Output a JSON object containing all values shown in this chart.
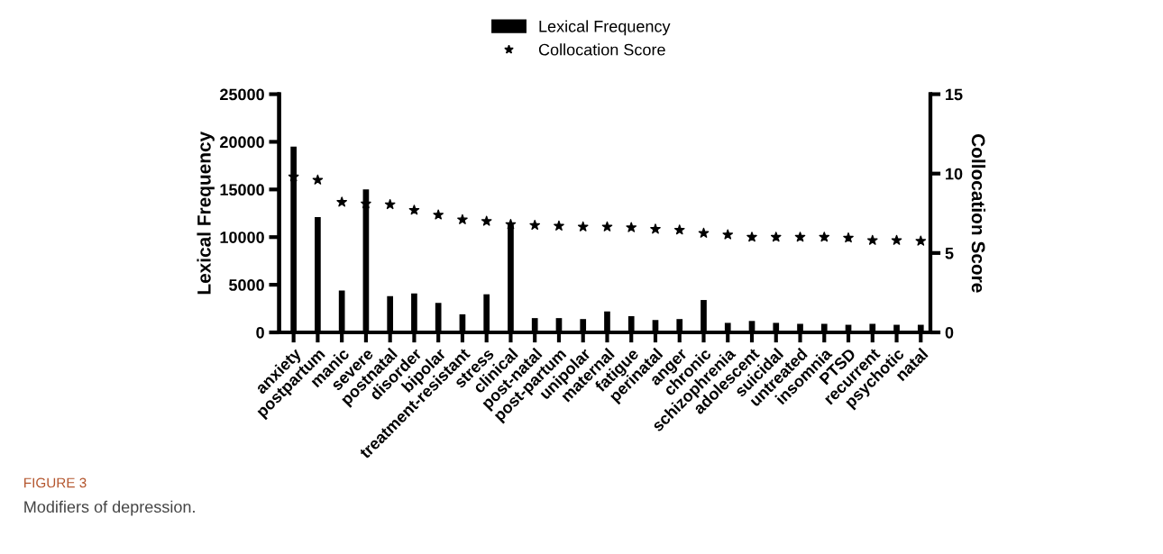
{
  "chart_data": {
    "type": "bar",
    "categories": [
      "anxiety",
      "postpartum",
      "manic",
      "severe",
      "postnatal",
      "disorder",
      "bipolar",
      "treatment-resistant",
      "stress",
      "clinical",
      "post-natal",
      "post-partum",
      "unipolar",
      "maternal",
      "fatigue",
      "perinatal",
      "anger",
      "chronic",
      "schizophrenia",
      "adolescent",
      "suicidal",
      "untreated",
      "insomnia",
      "PTSD",
      "recurrent",
      "psychotic",
      "natal"
    ],
    "series": [
      {
        "name": "Lexical Frequency",
        "color": "#000000",
        "values": [
          19500,
          12100,
          4400,
          15000,
          3800,
          4100,
          3100,
          1900,
          4000,
          11300,
          1500,
          1500,
          1400,
          2200,
          1700,
          1300,
          1400,
          3400,
          1000,
          1200,
          1000,
          900,
          900,
          800,
          900,
          800,
          800
        ]
      },
      {
        "name": "Collocation Score",
        "type": "scatter",
        "axis": "y2",
        "marker": "star",
        "color": "#000000",
        "values": [
          9.8,
          9.6,
          8.2,
          8.1,
          8.05,
          7.7,
          7.4,
          7.1,
          7.0,
          6.8,
          6.75,
          6.7,
          6.65,
          6.65,
          6.6,
          6.5,
          6.45,
          6.25,
          6.15,
          6.0,
          6.0,
          6.0,
          6.0,
          5.95,
          5.8,
          5.8,
          5.75
        ]
      }
    ],
    "ylabel": "Lexical Frequency",
    "y2label": "Collocation Score",
    "ylim": [
      0,
      25000
    ],
    "yticks": [
      0,
      5000,
      10000,
      15000,
      20000,
      25000
    ],
    "y2lim": [
      0,
      15
    ],
    "y2ticks": [
      0,
      5,
      10,
      15
    ],
    "grid": false,
    "legend": "top",
    "annotations": [
      "FIGURE 3",
      "Modifiers of depression."
    ]
  }
}
